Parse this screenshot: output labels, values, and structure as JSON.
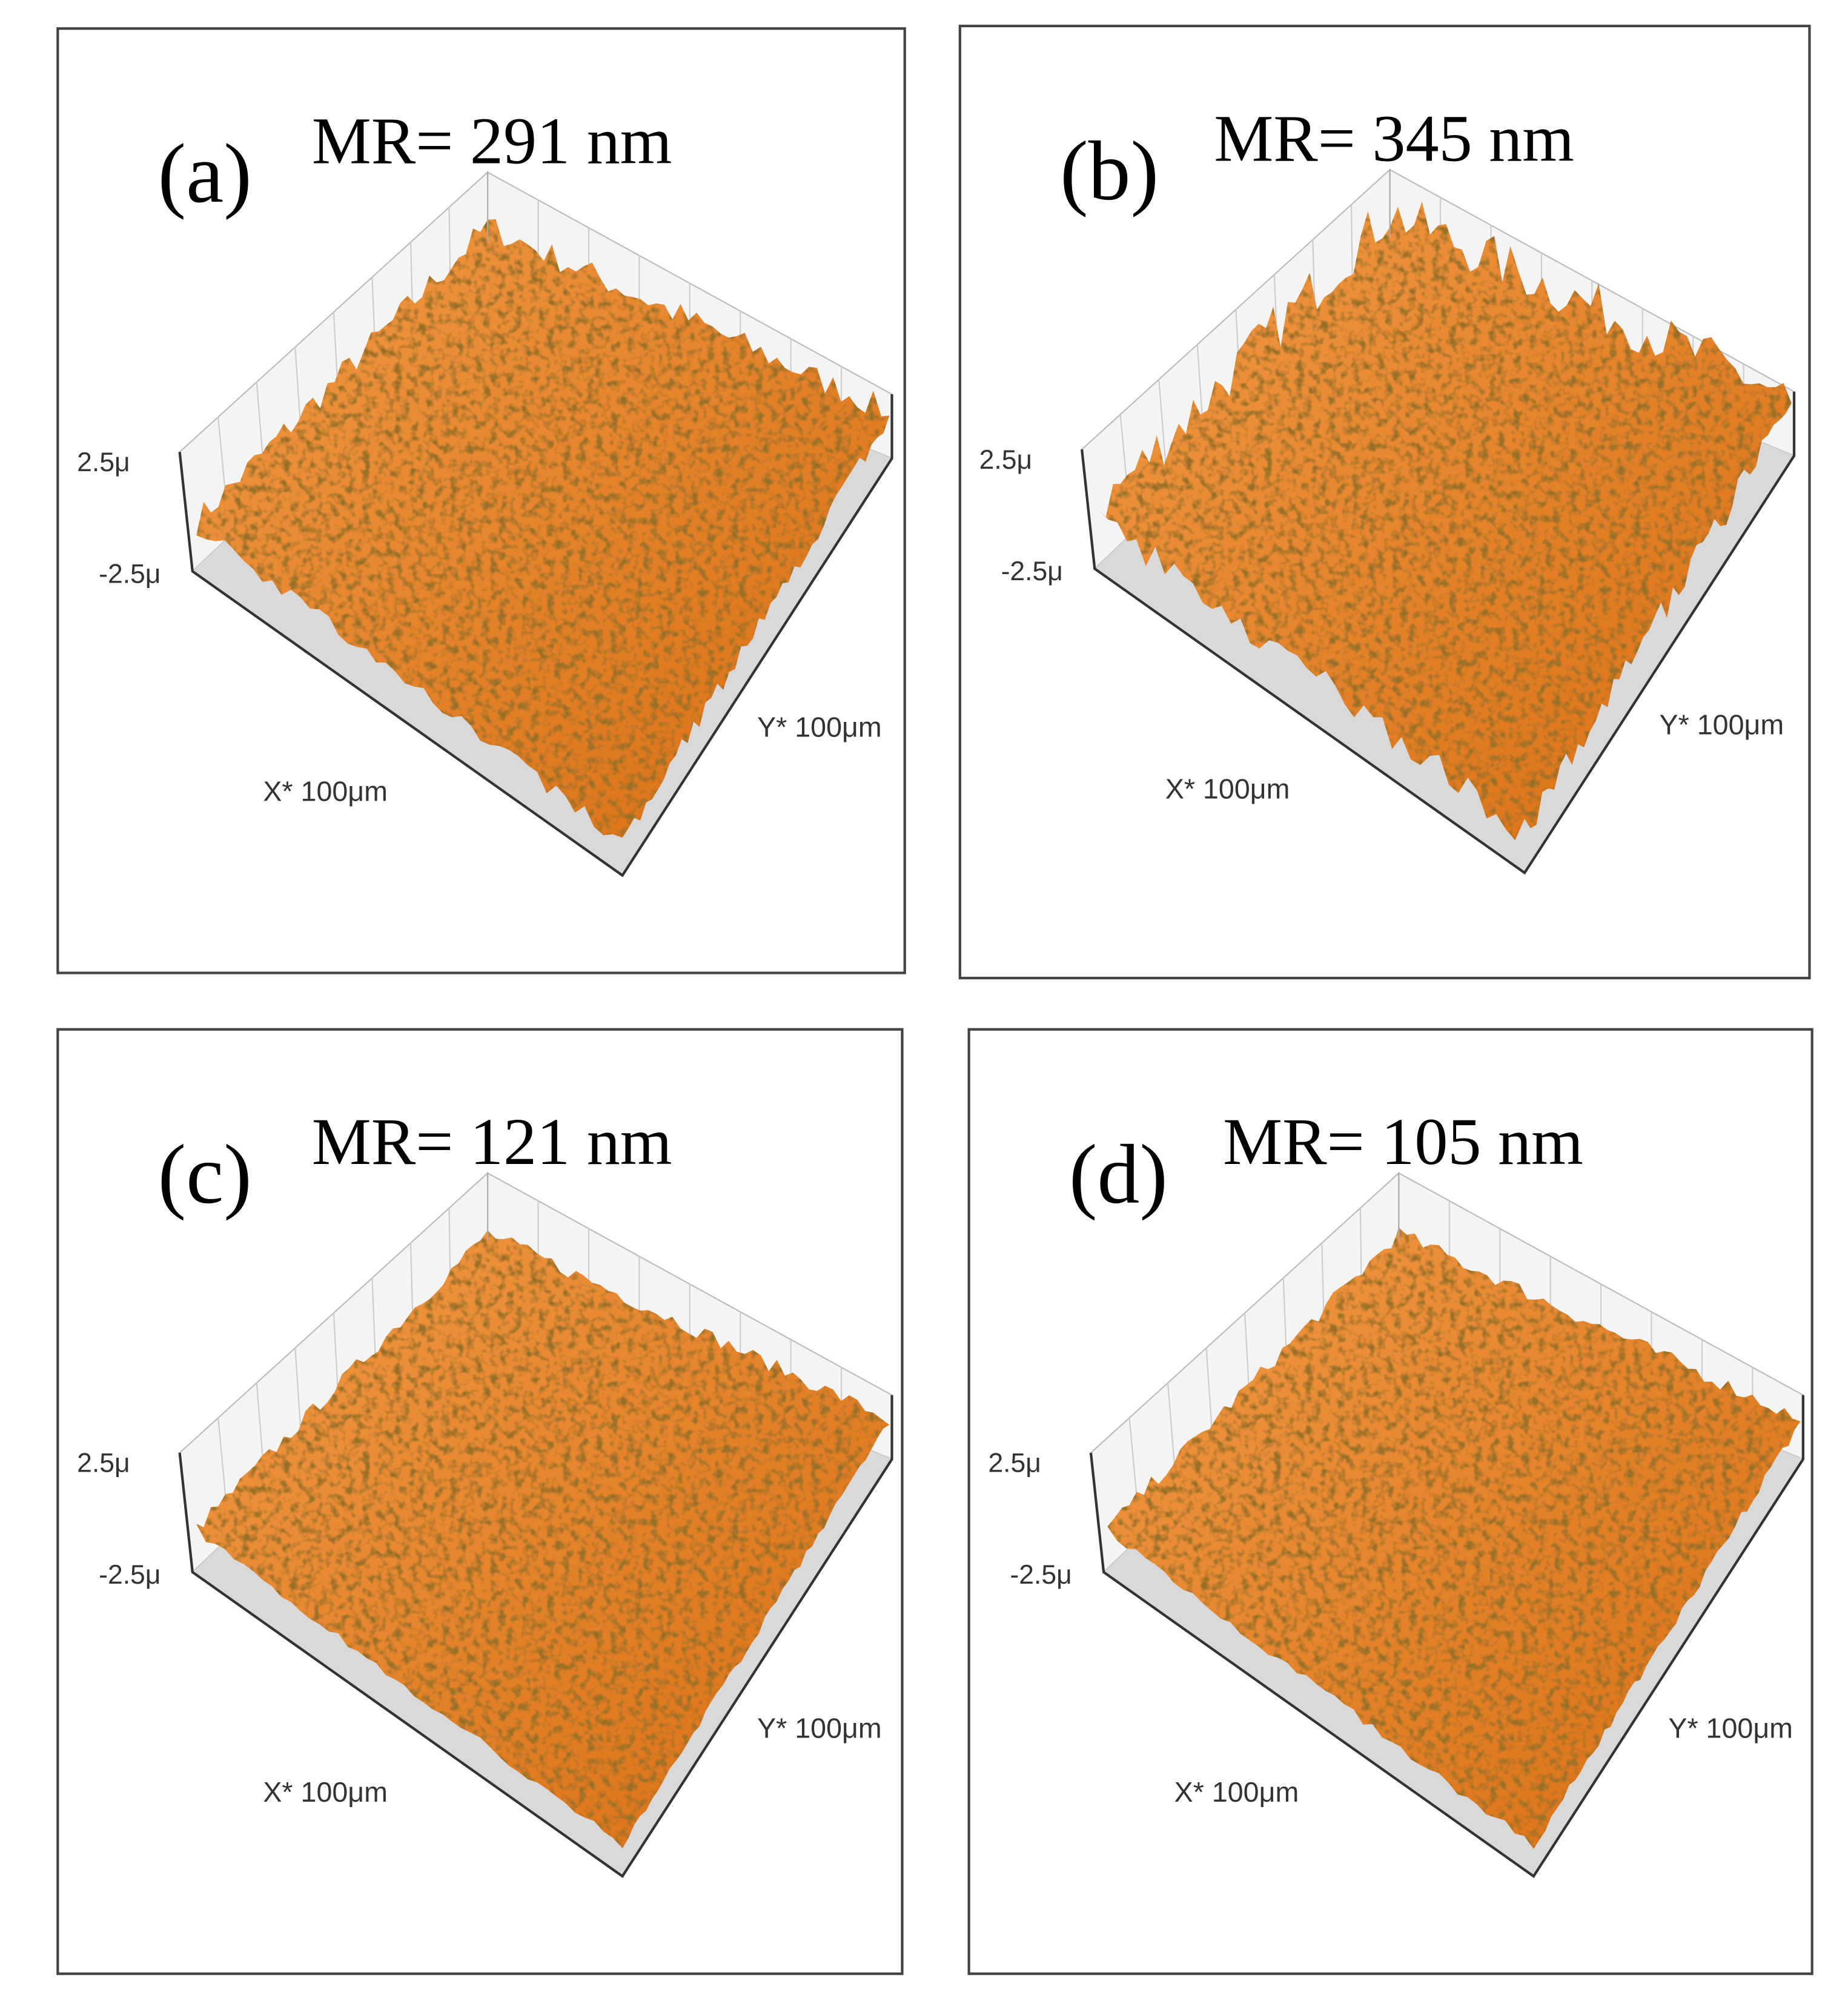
{
  "panels": [
    {
      "label": "(a)",
      "title": "MR= 291 nm",
      "z_max": "2.5μ",
      "z_min": "-2.5μ",
      "x_axis": "X* 100μm",
      "y_axis": "Y* 100μm"
    },
    {
      "label": "(b)",
      "title": "MR= 345 nm",
      "z_max": "2.5μ",
      "z_min": "-2.5μ",
      "x_axis": "X* 100μm",
      "y_axis": "Y* 100μm"
    },
    {
      "label": "(c)",
      "title": "MR= 121 nm",
      "z_max": "2.5μ",
      "z_min": "-2.5μ",
      "x_axis": "X* 100μm",
      "y_axis": "Y* 100μm"
    },
    {
      "label": "(d)",
      "title": "MR= 105 nm",
      "z_max": "2.5μ",
      "z_min": "-2.5μ",
      "x_axis": "X* 100μm",
      "y_axis": "Y* 100μm"
    }
  ]
}
